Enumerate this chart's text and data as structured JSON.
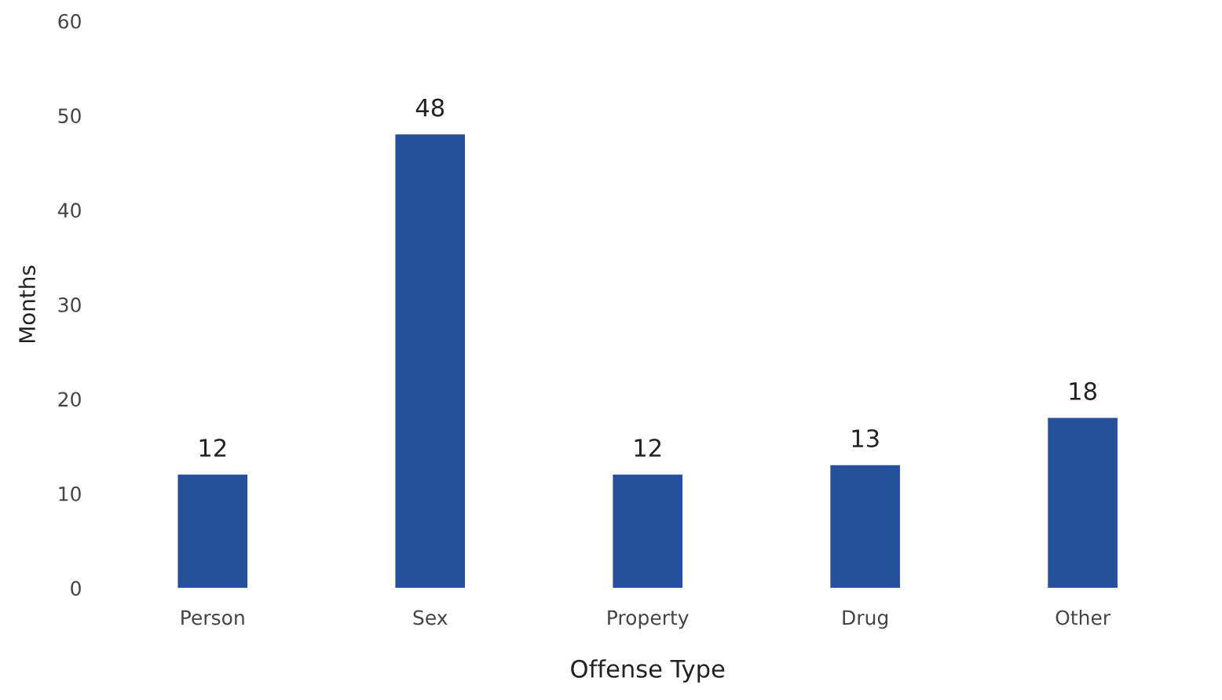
{
  "chart_data": {
    "type": "bar",
    "xlabel": "Offense Type",
    "ylabel": "Months",
    "categories": [
      "Person",
      "Sex",
      "Property",
      "Drug",
      "Other"
    ],
    "values": [
      12,
      48,
      12,
      13,
      18
    ],
    "color": "#27509b",
    "ylim": [
      0,
      60
    ],
    "yticks": [
      0,
      10,
      20,
      30,
      40,
      50,
      60
    ],
    "grid": false,
    "data_labels": true
  }
}
